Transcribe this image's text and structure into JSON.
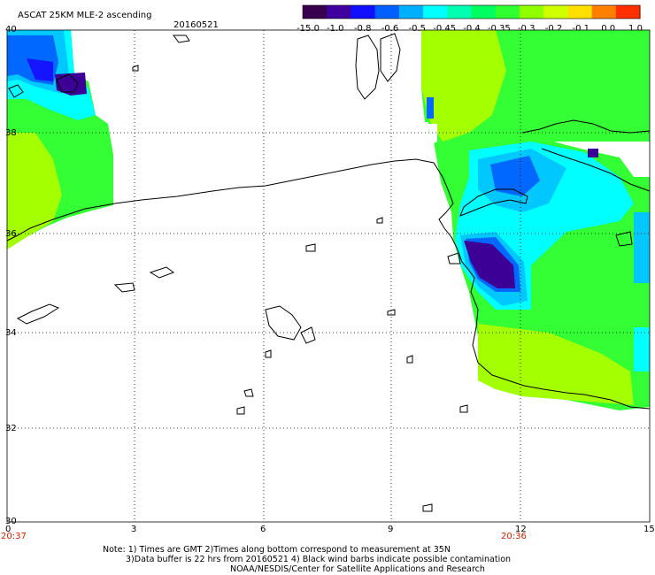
{
  "header": {
    "title": "ASCAT 25KM MLE-2 ascending",
    "date": "20160521"
  },
  "colorbar": {
    "labels": [
      "-15.0",
      "-1.0",
      "-0.8",
      "-0.6",
      "-0.5",
      "-0.45",
      "-0.4",
      "-0.35",
      "-0.3",
      "-0.2",
      "-0.1",
      "0.0",
      "1.0"
    ],
    "colors": [
      "#3a0050",
      "#4000a0",
      "#1010ff",
      "#0060ff",
      "#00b0ff",
      "#00ffff",
      "#00ffb0",
      "#00ff60",
      "#30ff30",
      "#90ff00",
      "#d0ff00",
      "#ffe000",
      "#ff8000",
      "#ff3000"
    ]
  },
  "axes": {
    "lat_labels": [
      "40",
      "38",
      "36",
      "34",
      "32",
      "30"
    ],
    "lon_labels": [
      "0",
      "3",
      "6",
      "9",
      "12",
      "15"
    ],
    "time_labels": [
      "20:37",
      "20:36"
    ]
  },
  "swath_colors": {
    "green": "#34ff34",
    "lime": "#a4ff00",
    "cyan": "#00ffff",
    "sky": "#00c8ff",
    "blue": "#0068ff",
    "deep": "#1414ff",
    "purple": "#3c0096"
  },
  "notes": [
    "Note: 1) Times are GMT 2)Times along bottom correspond to measurement at 35N",
    "3)Data buffer is 22 hrs from 20160521 4) Black wind barbs indicate possible contamination",
    "NOAA/NESDIS/Center for Satellite Applications and Research"
  ]
}
